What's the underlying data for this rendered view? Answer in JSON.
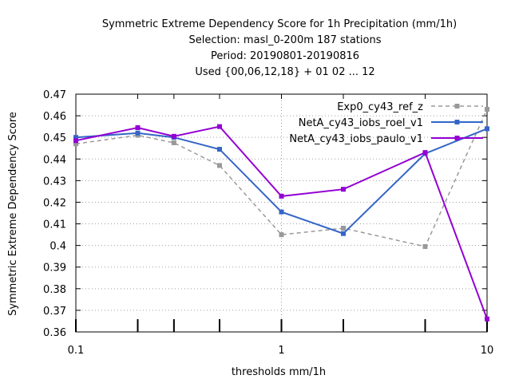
{
  "chart_data": {
    "type": "line",
    "title_lines": [
      "Symmetric Extreme Dependency Score  for 1h Precipitation (mm/1h)",
      "Selection: masl_0-200m    187 stations",
      "Period: 20190801-20190816",
      "Used {00,06,12,18} + 01 02 ... 12"
    ],
    "xlabel": "thresholds mm/1h",
    "ylabel": "Symmetric Extreme Dependency Score",
    "x_scale": "log",
    "xlim": [
      0.1,
      10
    ],
    "ylim": [
      0.36,
      0.47
    ],
    "x_ticks": [
      0.1,
      1,
      10
    ],
    "x_tick_labels": [
      "0.1",
      "1",
      "10"
    ],
    "y_ticks": [
      0.36,
      0.37,
      0.38,
      0.39,
      0.4,
      0.41,
      0.42,
      0.43,
      0.44,
      0.45,
      0.46,
      0.47
    ],
    "y_tick_labels": [
      "0.36",
      "0.37",
      "0.38",
      "0.39",
      "0.4",
      "0.41",
      "0.42",
      "0.43",
      "0.44",
      "0.45",
      "0.46",
      "0.47"
    ],
    "grid": true,
    "legend_position": "top-right",
    "x": [
      0.1,
      0.2,
      0.3,
      0.5,
      1,
      2,
      5,
      10
    ],
    "series": [
      {
        "name": "Exp0_cy43_ref_z",
        "color": "#999999",
        "dashed": true,
        "values": [
          0.447,
          0.451,
          0.4475,
          0.437,
          0.405,
          0.408,
          0.3995,
          0.463
        ]
      },
      {
        "name": "NetA_cy43_iobs_roel_v1",
        "color": "#3465c6",
        "dashed": false,
        "values": [
          0.45,
          0.452,
          0.45,
          0.4445,
          0.4155,
          0.4055,
          0.4425,
          0.454
        ]
      },
      {
        "name": "NetA_cy43_iobs_paulo_v1",
        "color": "#9400d3",
        "dashed": false,
        "values": [
          0.4485,
          0.4545,
          0.4505,
          0.455,
          0.4228,
          0.426,
          0.443,
          0.366
        ]
      }
    ]
  }
}
